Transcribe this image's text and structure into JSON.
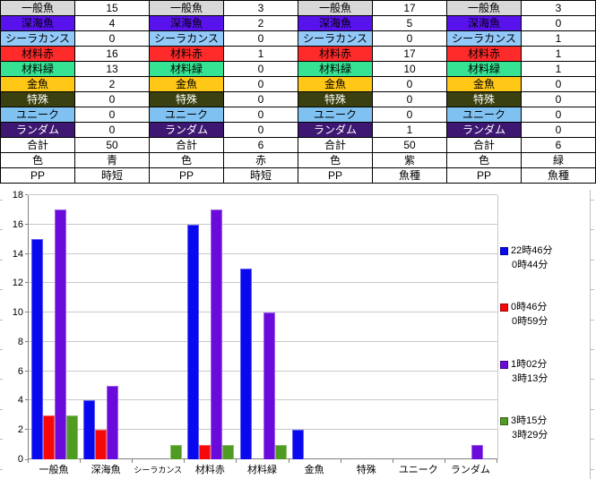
{
  "table": {
    "row_labels": [
      "一般魚",
      "深海魚",
      "シーラカンス",
      "材料赤",
      "材料緑",
      "金魚",
      "特殊",
      "ユニーク",
      "ランダム",
      "合計",
      "色",
      "PP"
    ],
    "row_styles": [
      {
        "bg": "#D8D8D8",
        "fg": "#000000"
      },
      {
        "bg": "#5812EC",
        "fg": "#000000"
      },
      {
        "bg": "#92C9F9",
        "fg": "#000000"
      },
      {
        "bg": "#FF2B2B",
        "fg": "#000000"
      },
      {
        "bg": "#35E392",
        "fg": "#000000"
      },
      {
        "bg": "#FFC817",
        "fg": "#000000"
      },
      {
        "bg": "#3A400F",
        "fg": "#FFFFFF"
      },
      {
        "bg": "#7FC2F2",
        "fg": "#000000"
      },
      {
        "bg": "#3D1771",
        "fg": "#FFFFFF"
      },
      {
        "bg": "#FFFFFF",
        "fg": "#000000"
      },
      {
        "bg": "#FFFFFF",
        "fg": "#000000"
      },
      {
        "bg": "#FFFFFF",
        "fg": "#000000"
      }
    ],
    "groups": [
      {
        "values": [
          "15",
          "4",
          "0",
          "16",
          "13",
          "2",
          "0",
          "0",
          "0",
          "50",
          "青",
          "時短"
        ]
      },
      {
        "values": [
          "3",
          "2",
          "0",
          "1",
          "0",
          "0",
          "0",
          "0",
          "0",
          "6",
          "赤",
          "時短"
        ]
      },
      {
        "values": [
          "17",
          "5",
          "0",
          "17",
          "10",
          "0",
          "0",
          "0",
          "1",
          "50",
          "紫",
          "魚種"
        ]
      },
      {
        "values": [
          "3",
          "0",
          "1",
          "1",
          "1",
          "0",
          "0",
          "0",
          "0",
          "6",
          "緑",
          "魚種"
        ]
      }
    ]
  },
  "chart_data": {
    "type": "bar",
    "categories": [
      "一般魚",
      "深海魚",
      "シーラカンス",
      "材料赤",
      "材料緑",
      "金魚",
      "特殊",
      "ユニーク",
      "ランダム"
    ],
    "series": [
      {
        "name": "22時46分",
        "name2": "0時44分",
        "color": "#0909F0",
        "values": [
          15,
          4,
          0,
          16,
          13,
          2,
          0,
          0,
          0
        ]
      },
      {
        "name": "0時46分",
        "name2": "0時59分",
        "color": "#F70808",
        "values": [
          3,
          2,
          0,
          1,
          0,
          0,
          0,
          0,
          0
        ]
      },
      {
        "name": "1時02分",
        "name2": "3時13分",
        "color": "#6A0BDC",
        "values": [
          17,
          5,
          0,
          17,
          10,
          0,
          0,
          0,
          1
        ]
      },
      {
        "name": "3時15分",
        "name2": "3時29分",
        "color": "#509C23",
        "values": [
          3,
          0,
          1,
          1,
          1,
          0,
          0,
          0,
          0
        ]
      }
    ],
    "title": "",
    "xlabel": "",
    "ylabel": "",
    "ylim": [
      0,
      18
    ],
    "ytick_step": 2,
    "grid": true,
    "legend_position": "right",
    "colors": {
      "gridline": "#C9C9C9",
      "axis": "#808080"
    }
  }
}
